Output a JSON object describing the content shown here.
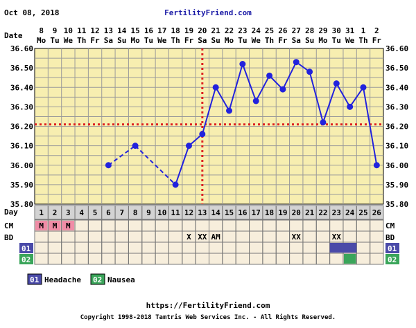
{
  "header": {
    "date": "Oct 08, 2018",
    "site": "FertilityFriend.com"
  },
  "row_labels": {
    "date": "Date",
    "day": "Day",
    "cm": "CM",
    "bd": "BD",
    "sym1": "01",
    "sym2": "02"
  },
  "dates": [
    "8",
    "9",
    "10",
    "11",
    "12",
    "13",
    "14",
    "15",
    "16",
    "17",
    "18",
    "19",
    "20",
    "21",
    "22",
    "23",
    "24",
    "25",
    "26",
    "27",
    "28",
    "29",
    "30",
    "31",
    "1",
    "2"
  ],
  "weekdays": [
    "Mo",
    "Tu",
    "We",
    "Th",
    "Fr",
    "Sa",
    "Su",
    "Mo",
    "Tu",
    "We",
    "Th",
    "Fr",
    "Sa",
    "Su",
    "Mo",
    "Tu",
    "We",
    "Th",
    "Fr",
    "Sa",
    "Su",
    "Mo",
    "Tu",
    "We",
    "Th",
    "Fr"
  ],
  "cycle_days": [
    "1",
    "2",
    "3",
    "4",
    "5",
    "6",
    "7",
    "8",
    "9",
    "10",
    "11",
    "12",
    "13",
    "14",
    "15",
    "16",
    "17",
    "18",
    "19",
    "20",
    "21",
    "22",
    "23",
    "24",
    "25",
    "26"
  ],
  "cm": [
    "M",
    "M",
    "M",
    "",
    "",
    "",
    "",
    "",
    "",
    "",
    "",
    "",
    "",
    "",
    "",
    "",
    "",
    "",
    "",
    "",
    "",
    "",
    "",
    "",
    "",
    ""
  ],
  "bd": [
    "",
    "",
    "",
    "",
    "",
    "",
    "",
    "",
    "",
    "",
    "",
    "X",
    "XX",
    "AM",
    "",
    "",
    "",
    "",
    "",
    "XX",
    "",
    "",
    "XX",
    "",
    "",
    ""
  ],
  "symptoms": {
    "s01": [
      23,
      24
    ],
    "s02": [
      24
    ]
  },
  "legend": [
    {
      "code": "01",
      "label": "Headache",
      "color": "#4a4aa8"
    },
    {
      "code": "02",
      "label": "Nausea",
      "color": "#3aa55a"
    }
  ],
  "footer": {
    "url": "https://FertilityFriend.com",
    "copyright": "Copyright 1998-2018 Tamtris Web Services Inc. - All Rights Reserved."
  },
  "colors": {
    "grid_bg": "#f7eeb0",
    "line": "#2222dd",
    "coverline": "#dd2222",
    "cm_fill": "#f08ca6",
    "table_bg": "#f7eedc",
    "day_row_bg": "#d3d3d3"
  },
  "chart_data": {
    "type": "line",
    "x": [
      1,
      2,
      3,
      4,
      5,
      6,
      7,
      8,
      9,
      10,
      11,
      12,
      13,
      14,
      15,
      16,
      17,
      18,
      19,
      20,
      21,
      22,
      23,
      24,
      25,
      26
    ],
    "y": [
      null,
      null,
      null,
      null,
      null,
      36.0,
      null,
      36.1,
      null,
      null,
      35.9,
      36.1,
      36.16,
      36.4,
      36.28,
      36.52,
      36.33,
      36.46,
      36.39,
      36.53,
      36.48,
      36.22,
      36.42,
      36.3,
      36.4,
      36.0
    ],
    "dashed_segments": [
      [
        6,
        8
      ],
      [
        8,
        11
      ]
    ],
    "ylim": [
      35.8,
      36.6
    ],
    "yticks": [
      "35.80",
      "35.90",
      "36.00",
      "36.10",
      "36.20",
      "36.30",
      "36.40",
      "36.50",
      "36.60"
    ],
    "coverline": 36.21,
    "ovulation_day": 13,
    "grid": true
  }
}
